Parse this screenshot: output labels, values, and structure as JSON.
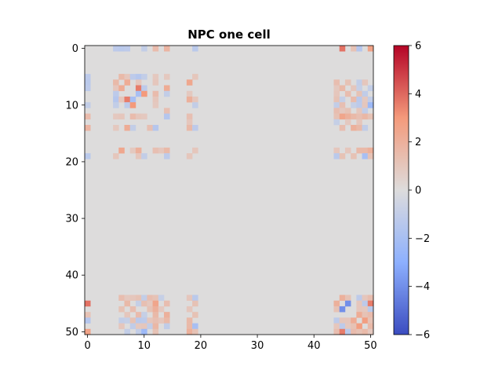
{
  "chart_data": {
    "type": "heatmap",
    "title": "NPC one cell",
    "xlabel": "",
    "ylabel": "",
    "colormap": "coolwarm",
    "rows": 51,
    "cols": 51,
    "background_value": 0,
    "xticks": [
      0,
      10,
      20,
      30,
      40,
      50
    ],
    "yticks": [
      0,
      10,
      20,
      30,
      40,
      50
    ],
    "colorbar": {
      "min": -6,
      "max": 6,
      "ticks": [
        -6,
        -4,
        -2,
        0,
        2,
        4,
        6
      ]
    },
    "grid": false,
    "cells": [
      [
        0,
        5,
        -1.2
      ],
      [
        0,
        6,
        -1.3
      ],
      [
        0,
        7,
        -1.2
      ],
      [
        0,
        10,
        -1.0
      ],
      [
        0,
        12,
        1.5
      ],
      [
        0,
        14,
        1.8
      ],
      [
        0,
        19,
        -1.3
      ],
      [
        0,
        45,
        3.8
      ],
      [
        0,
        47,
        1.2
      ],
      [
        0,
        48,
        -1.5
      ],
      [
        0,
        50,
        2.6
      ],
      [
        5,
        6,
        1.6
      ],
      [
        5,
        7,
        1.0
      ],
      [
        5,
        8,
        -1.2
      ],
      [
        5,
        9,
        -1.5
      ],
      [
        5,
        10,
        -1.0
      ],
      [
        5,
        12,
        0.9
      ],
      [
        5,
        14,
        0.9
      ],
      [
        5,
        19,
        1.0
      ],
      [
        6,
        7,
        2.2
      ],
      [
        6,
        9,
        1.0
      ],
      [
        6,
        12,
        1.0
      ],
      [
        6,
        18,
        2.4
      ],
      [
        6,
        44,
        1.4
      ],
      [
        6,
        46,
        1.2
      ],
      [
        6,
        48,
        -1.0
      ],
      [
        6,
        49,
        1.0
      ],
      [
        7,
        9,
        3.6
      ],
      [
        7,
        10,
        -1.2
      ],
      [
        7,
        14,
        2.2
      ],
      [
        7,
        44,
        0.9
      ],
      [
        7,
        45,
        1.6
      ],
      [
        7,
        47,
        1.0
      ],
      [
        7,
        48,
        -0.9
      ],
      [
        7,
        50,
        -1.0
      ],
      [
        8,
        9,
        -2.0
      ],
      [
        8,
        10,
        3.0
      ],
      [
        8,
        12,
        1.5
      ],
      [
        8,
        14,
        -1.0
      ],
      [
        8,
        18,
        0.9
      ],
      [
        8,
        44,
        1.0
      ],
      [
        8,
        46,
        1.4
      ],
      [
        8,
        48,
        1.2
      ],
      [
        8,
        49,
        -1.1
      ],
      [
        9,
        12,
        1.0
      ],
      [
        9,
        18,
        2.0
      ],
      [
        9,
        19,
        1.0
      ],
      [
        9,
        44,
        1.2
      ],
      [
        9,
        45,
        -0.9
      ],
      [
        9,
        47,
        1.5
      ],
      [
        9,
        48,
        -1.3
      ],
      [
        9,
        49,
        0.9
      ],
      [
        9,
        50,
        -1.0
      ],
      [
        10,
        12,
        0.9
      ],
      [
        10,
        19,
        -1.0
      ],
      [
        10,
        44,
        -1.0
      ],
      [
        10,
        45,
        1.3
      ],
      [
        10,
        47,
        -0.9
      ],
      [
        10,
        48,
        -1.2
      ],
      [
        10,
        49,
        1.0
      ],
      [
        10,
        50,
        -2.4
      ],
      [
        11,
        14,
        1.3
      ],
      [
        11,
        44,
        1.4
      ],
      [
        11,
        45,
        0.9
      ],
      [
        11,
        46,
        1.2
      ],
      [
        11,
        48,
        1.0
      ],
      [
        11,
        49,
        -1.0
      ],
      [
        12,
        14,
        -1.5
      ],
      [
        12,
        18,
        1.3
      ],
      [
        12,
        44,
        1.2
      ],
      [
        12,
        45,
        2.5
      ],
      [
        12,
        46,
        2.0
      ],
      [
        12,
        47,
        1.6
      ],
      [
        12,
        48,
        1.3
      ],
      [
        12,
        49,
        1.7
      ],
      [
        12,
        50,
        1.2
      ],
      [
        13,
        18,
        1.0
      ],
      [
        13,
        44,
        -0.9
      ],
      [
        13,
        46,
        0.9
      ],
      [
        13,
        48,
        1.0
      ],
      [
        14,
        18,
        1.6
      ],
      [
        14,
        19,
        -1.2
      ],
      [
        14,
        45,
        1.4
      ],
      [
        14,
        47,
        2.0
      ],
      [
        14,
        48,
        1.6
      ],
      [
        14,
        49,
        -1.1
      ],
      [
        18,
        19,
        1.0
      ],
      [
        18,
        44,
        1.0
      ],
      [
        18,
        46,
        1.0
      ],
      [
        18,
        48,
        1.6
      ],
      [
        18,
        49,
        1.6
      ],
      [
        18,
        50,
        2.0
      ],
      [
        19,
        44,
        -1.3
      ],
      [
        19,
        45,
        1.2
      ],
      [
        19,
        47,
        1.2
      ],
      [
        19,
        49,
        -2.0
      ],
      [
        19,
        50,
        1.2
      ],
      [
        44,
        45,
        2.0
      ],
      [
        44,
        46,
        1.2
      ],
      [
        44,
        48,
        -1.2
      ],
      [
        44,
        49,
        1.0
      ],
      [
        44,
        50,
        1.4
      ],
      [
        45,
        46,
        -4.0
      ],
      [
        45,
        48,
        1.0
      ],
      [
        45,
        49,
        -1.2
      ],
      [
        45,
        50,
        3.6
      ],
      [
        46,
        48,
        1.0
      ],
      [
        46,
        49,
        0.9
      ],
      [
        46,
        50,
        -1.3
      ],
      [
        47,
        48,
        2.2
      ],
      [
        47,
        49,
        1.2
      ],
      [
        47,
        50,
        1.5
      ],
      [
        48,
        49,
        2.8
      ],
      [
        48,
        50,
        1.2
      ],
      [
        49,
        50,
        1.6
      ],
      [
        50,
        50,
        0.9
      ]
    ]
  }
}
